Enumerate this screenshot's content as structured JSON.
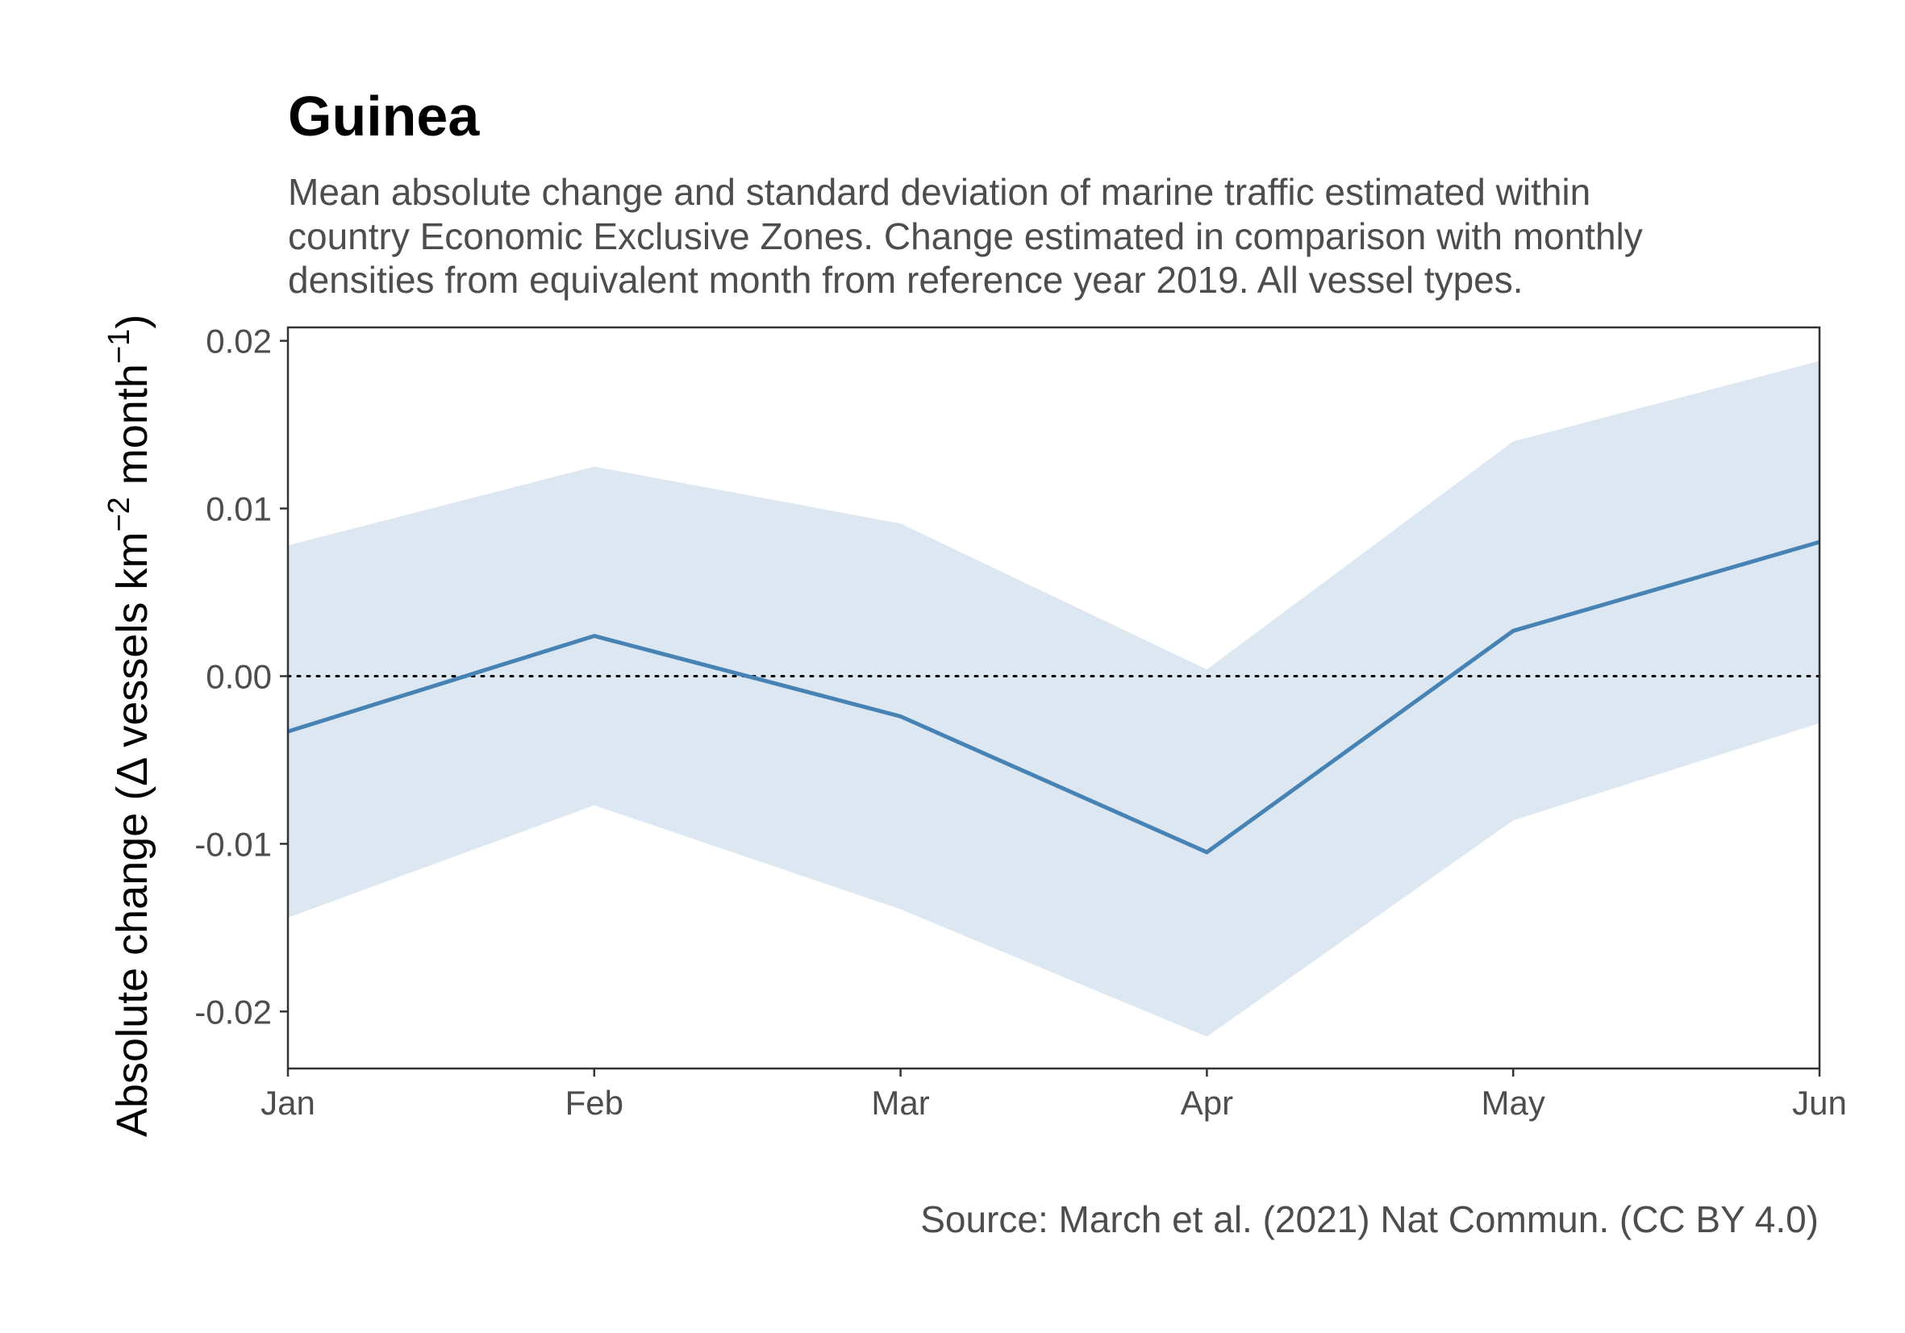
{
  "chart_data": {
    "type": "line",
    "title": "Guinea",
    "subtitle_lines": [
      "Mean absolute change and standard deviation of marine traffic estimated within",
      "country Economic Exclusive Zones. Change estimated in comparison with monthly",
      "densities from equivalent month from reference year 2019. All vessel types."
    ],
    "caption": "Source: March et al. (2021) Nat Commun. (CC BY 4.0)",
    "ylabel": {
      "prefix": "Absolute change (",
      "delta": "Δ",
      "main": " vessels km",
      "exp1": "−2",
      "mid": " month",
      "exp2": "−1",
      "suffix": ")"
    },
    "xlabel": "",
    "categories": [
      "Jan",
      "Feb",
      "Mar",
      "Apr",
      "May",
      "Jun"
    ],
    "ylim": [
      -0.0234,
      0.0208
    ],
    "yticks": [
      0.02,
      0.01,
      0.0,
      -0.01,
      -0.02
    ],
    "ytick_labels": [
      "0.02",
      "0.01",
      "0.00",
      "-0.01",
      "-0.02"
    ],
    "series": [
      {
        "mean": [
          -0.0033,
          0.0024,
          -0.0024,
          -0.0105,
          0.0027,
          0.008
        ],
        "upper": [
          0.0078,
          0.0125,
          0.0091,
          0.0004,
          0.014,
          0.0188
        ],
        "lower": [
          -0.0144,
          -0.0077,
          -0.0139,
          -0.0215,
          -0.0086,
          -0.0028
        ]
      }
    ],
    "reference_line": 0,
    "grid": false,
    "legend": "none",
    "colors": {
      "line": "#4682b4",
      "ribbon": "#dce7f1",
      "reference": "#000000",
      "axis": "#333333"
    }
  }
}
